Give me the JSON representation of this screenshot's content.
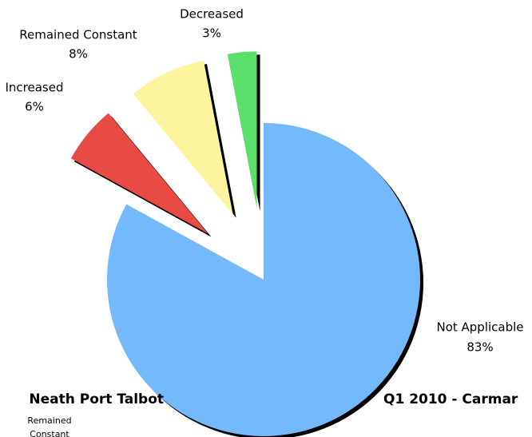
{
  "chart_data": {
    "type": "pie",
    "categories": [
      "Not Applicable",
      "Increased",
      "Remained Constant",
      "Decreased"
    ],
    "values": [
      83,
      6,
      8,
      3
    ],
    "value_labels": [
      "83%",
      "6%",
      "8%",
      "3%"
    ],
    "colors": [
      "#74b9fc",
      "#e84a44",
      "#fdf49e",
      "#5ae06a"
    ]
  },
  "fragments": {
    "left_title": "Neath Port Talbot",
    "right_title": "Q1 2010 - Carmar",
    "small_label_1": "Remained",
    "small_label_2": "Constant"
  }
}
